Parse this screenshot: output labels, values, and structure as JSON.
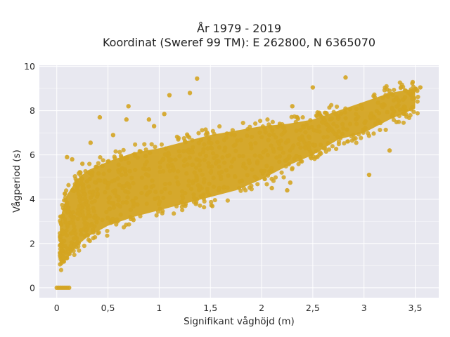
{
  "chart_data": {
    "type": "scatter",
    "title": [
      "År 1979 - 2019",
      "Koordinat (Sweref 99 TM): E 262800, N 6365070"
    ],
    "xlabel": "Signifikant våghöjd (m)",
    "ylabel": "Vågperiod (s)",
    "xlim": [
      -0.17,
      3.73
    ],
    "ylim": [
      -0.45,
      10.05
    ],
    "x_ticks": [
      0,
      0.5,
      1,
      1.5,
      2,
      2.5,
      3,
      3.5
    ],
    "x_tick_labels": [
      "0",
      "0,5",
      "1",
      "1,5",
      "2",
      "2,5",
      "3",
      "3,5"
    ],
    "y_ticks": [
      0,
      2,
      4,
      6,
      8,
      10
    ],
    "y_tick_labels": [
      "0",
      "2",
      "4",
      "6",
      "8",
      "10"
    ],
    "grid": true,
    "colors": {
      "marker": "#d4a421",
      "plot_bg": "#e8e8f0",
      "grid": "#ffffff"
    },
    "density_band": {
      "x": [
        0.03,
        0.05,
        0.1,
        0.2,
        0.3,
        0.5,
        0.75,
        1.0,
        1.25,
        1.5,
        1.75,
        2.0,
        2.25,
        2.5,
        2.75,
        3.0,
        3.25,
        3.5
      ],
      "y_low": [
        1.2,
        1.1,
        1.3,
        1.9,
        2.3,
        2.8,
        3.2,
        3.5,
        3.8,
        4.1,
        4.4,
        4.9,
        5.5,
        6.0,
        6.7,
        7.0,
        7.6,
        8.1
      ],
      "y_high": [
        2.8,
        3.4,
        4.2,
        4.9,
        5.3,
        5.7,
        6.1,
        6.3,
        6.6,
        6.9,
        7.1,
        7.3,
        7.4,
        7.6,
        8.0,
        8.4,
        8.8,
        9.0
      ]
    },
    "series": [
      {
        "x": [
          0.0,
          0.02,
          0.04,
          0.06,
          0.08,
          0.1,
          0.12,
          1.37,
          2.82,
          2.5,
          3.55,
          3.52,
          3.45,
          3.4,
          3.2,
          2.98,
          2.92,
          2.75,
          1.1,
          1.3,
          0.7,
          0.68,
          0.9,
          1.05,
          0.42,
          0.33,
          2.1,
          2.25,
          2.28,
          1.96,
          2.05,
          2.3,
          3.05,
          3.25,
          0.1,
          0.15,
          0.25,
          0.55,
          0.95
        ],
        "y": [
          0.0,
          0.0,
          0.0,
          0.0,
          0.0,
          0.0,
          0.0,
          9.45,
          9.5,
          9.05,
          9.05,
          8.9,
          8.75,
          8.6,
          8.25,
          8.1,
          7.6,
          7.7,
          8.7,
          8.8,
          8.2,
          7.6,
          7.6,
          7.85,
          7.7,
          6.55,
          4.5,
          4.4,
          4.75,
          5.7,
          5.5,
          8.2,
          5.1,
          6.2,
          5.9,
          5.8,
          5.6,
          6.9,
          7.3
        ]
      }
    ]
  }
}
